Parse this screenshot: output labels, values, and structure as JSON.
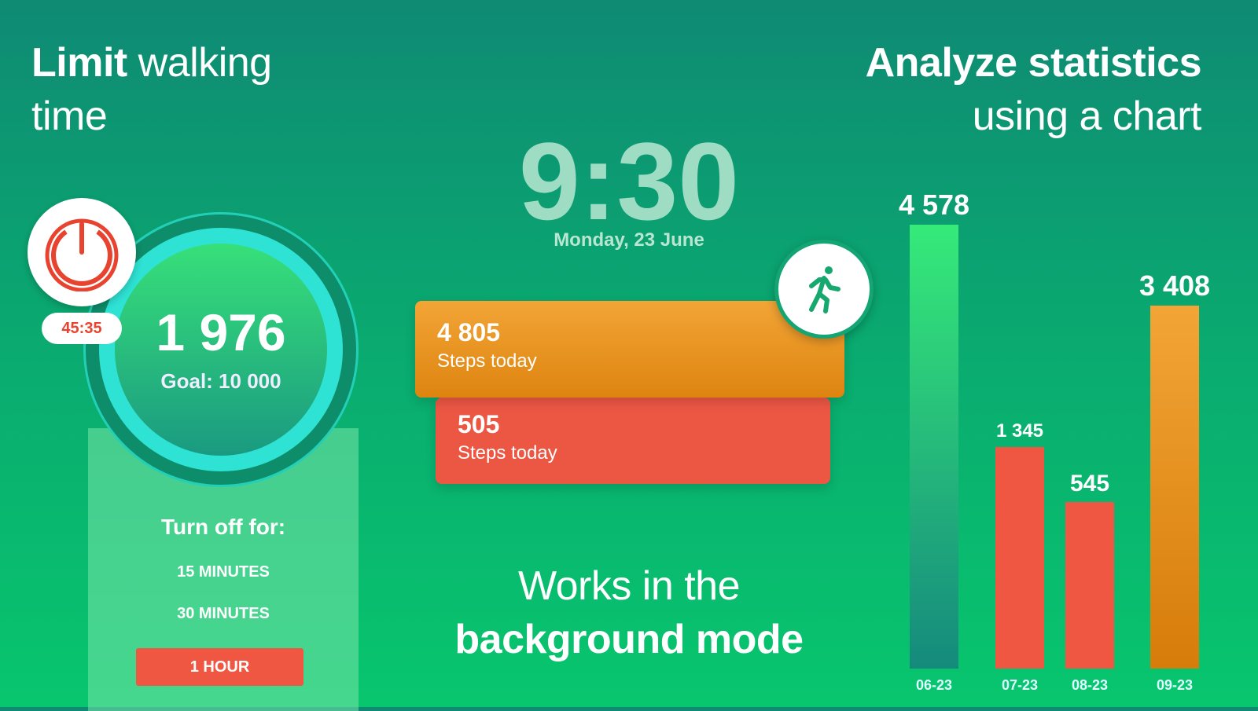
{
  "headings": {
    "left_bold": "Limit",
    "left_rest": "walking",
    "left_line2": "time",
    "right_line1": "Analyze statistics",
    "right_line2": "using a chart",
    "center_line1": "Works in the",
    "center_line2": "background mode"
  },
  "counter": {
    "steps": "1 976",
    "goal": "Goal: 10 000",
    "timer": "45:35",
    "power_icon": "power-icon",
    "turn_off_label": "Turn off for:",
    "options": [
      "15 MINUTES",
      "30 MINUTES",
      "1 HOUR"
    ]
  },
  "clock": {
    "time": "9:30",
    "date": "Monday, 23 June"
  },
  "cards": [
    {
      "value": "4 805",
      "label": "Steps today",
      "color": "#f0a030"
    },
    {
      "value": "505",
      "label": "Steps today",
      "color": "#ec5744"
    }
  ],
  "runner_icon": "running-person-icon",
  "chart_data": {
    "type": "bar",
    "categories": [
      "06-23",
      "07-23",
      "08-23",
      "09-23"
    ],
    "values": [
      4578,
      1345,
      545,
      3408
    ],
    "value_labels": [
      "4 578",
      "1 345",
      "545",
      "3 408"
    ],
    "colors": [
      "#2fd07a",
      "#ef5742",
      "#ef5742",
      "#e8951e"
    ]
  }
}
